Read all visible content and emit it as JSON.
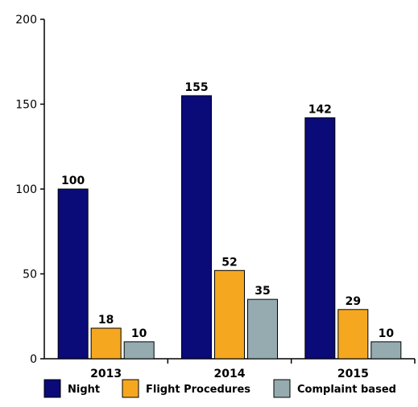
{
  "chart_data": {
    "type": "bar",
    "categories": [
      "2013",
      "2014",
      "2015"
    ],
    "series": [
      {
        "name": "Night",
        "values": [
          100,
          155,
          142
        ],
        "color": "#0a0a78"
      },
      {
        "name": "Flight Procedures",
        "values": [
          18,
          52,
          29
        ],
        "color": "#f5a81f"
      },
      {
        "name": "Complaint based",
        "values": [
          10,
          35,
          10
        ],
        "color": "#95abb0"
      }
    ],
    "ylim": [
      0,
      200
    ],
    "yticks": [
      0,
      50,
      100,
      150,
      200
    ],
    "grid": false,
    "legend_position": "bottom"
  }
}
